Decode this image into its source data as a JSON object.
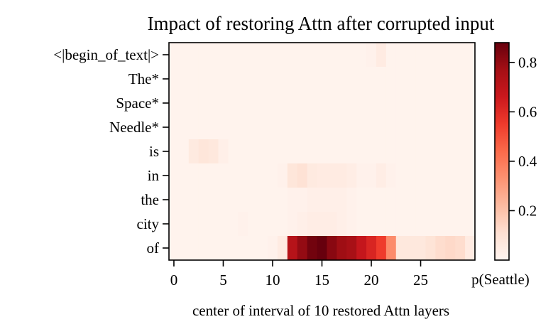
{
  "chart_data": {
    "type": "heatmap",
    "title": "Impact of restoring Attn after corrupted input",
    "xlabel": "center of interval of 10 restored Attn layers",
    "ylabel": "",
    "colorbar_label": "p(Seattle)",
    "x_ticks": [
      0,
      5,
      10,
      15,
      20,
      25
    ],
    "x": [
      0,
      1,
      2,
      3,
      4,
      5,
      6,
      7,
      8,
      9,
      10,
      11,
      12,
      13,
      14,
      15,
      16,
      17,
      18,
      19,
      20,
      21,
      22,
      23,
      24,
      25,
      26,
      27,
      28,
      29,
      30
    ],
    "y_labels": [
      "<|begin_of_text|>",
      "The*",
      "Space*",
      "Needle*",
      "is",
      "in",
      "the",
      "city",
      "of"
    ],
    "colorbar_ticks": [
      0.2,
      0.4,
      0.6,
      0.8
    ],
    "vmin": 0.0,
    "vmax": 0.88,
    "colormap": "Reds",
    "values": [
      [
        0.01,
        0.01,
        0.01,
        0.01,
        0.01,
        0.01,
        0.01,
        0.01,
        0.01,
        0.01,
        0.01,
        0.01,
        0.01,
        0.01,
        0.01,
        0.01,
        0.01,
        0.01,
        0.01,
        0.01,
        0.02,
        0.05,
        0.01,
        0.01,
        0.01,
        0.01,
        0.01,
        0.01,
        0.01,
        0.01,
        0.01
      ],
      [
        0.01,
        0.01,
        0.01,
        0.01,
        0.01,
        0.01,
        0.01,
        0.01,
        0.01,
        0.01,
        0.01,
        0.01,
        0.01,
        0.01,
        0.01,
        0.01,
        0.01,
        0.01,
        0.01,
        0.01,
        0.01,
        0.01,
        0.01,
        0.01,
        0.01,
        0.01,
        0.01,
        0.01,
        0.01,
        0.01,
        0.01
      ],
      [
        0.01,
        0.01,
        0.01,
        0.01,
        0.01,
        0.01,
        0.01,
        0.01,
        0.01,
        0.01,
        0.01,
        0.01,
        0.01,
        0.01,
        0.01,
        0.01,
        0.01,
        0.01,
        0.01,
        0.01,
        0.01,
        0.01,
        0.01,
        0.01,
        0.01,
        0.01,
        0.01,
        0.01,
        0.01,
        0.01,
        0.01
      ],
      [
        0.01,
        0.01,
        0.01,
        0.01,
        0.01,
        0.01,
        0.01,
        0.01,
        0.01,
        0.01,
        0.01,
        0.01,
        0.01,
        0.01,
        0.01,
        0.01,
        0.01,
        0.01,
        0.01,
        0.01,
        0.01,
        0.01,
        0.01,
        0.01,
        0.01,
        0.01,
        0.01,
        0.01,
        0.01,
        0.01,
        0.01
      ],
      [
        0.01,
        0.01,
        0.06,
        0.08,
        0.07,
        0.03,
        0.01,
        0.01,
        0.01,
        0.01,
        0.01,
        0.01,
        0.01,
        0.01,
        0.01,
        0.01,
        0.01,
        0.01,
        0.01,
        0.01,
        0.01,
        0.01,
        0.01,
        0.01,
        0.01,
        0.01,
        0.01,
        0.01,
        0.01,
        0.01,
        0.01
      ],
      [
        0.01,
        0.01,
        0.01,
        0.01,
        0.01,
        0.01,
        0.01,
        0.01,
        0.01,
        0.01,
        0.01,
        0.02,
        0.08,
        0.1,
        0.06,
        0.05,
        0.05,
        0.05,
        0.04,
        0.02,
        0.02,
        0.04,
        0.02,
        0.01,
        0.01,
        0.01,
        0.01,
        0.01,
        0.01,
        0.01,
        0.01
      ],
      [
        0.01,
        0.01,
        0.01,
        0.01,
        0.01,
        0.01,
        0.01,
        0.01,
        0.01,
        0.01,
        0.01,
        0.01,
        0.02,
        0.02,
        0.03,
        0.03,
        0.03,
        0.03,
        0.02,
        0.01,
        0.01,
        0.01,
        0.01,
        0.01,
        0.01,
        0.01,
        0.01,
        0.01,
        0.01,
        0.01,
        0.01
      ],
      [
        0.01,
        0.01,
        0.01,
        0.01,
        0.01,
        0.01,
        0.01,
        0.02,
        0.01,
        0.01,
        0.01,
        0.01,
        0.02,
        0.03,
        0.04,
        0.04,
        0.04,
        0.03,
        0.02,
        0.01,
        0.01,
        0.01,
        0.01,
        0.01,
        0.01,
        0.01,
        0.01,
        0.01,
        0.01,
        0.01,
        0.01
      ],
      [
        0.01,
        0.01,
        0.01,
        0.01,
        0.01,
        0.01,
        0.01,
        0.01,
        0.01,
        0.01,
        0.02,
        0.05,
        0.72,
        0.8,
        0.86,
        0.88,
        0.82,
        0.78,
        0.76,
        0.68,
        0.62,
        0.55,
        0.35,
        0.07,
        0.07,
        0.07,
        0.09,
        0.12,
        0.13,
        0.12,
        0.05
      ]
    ]
  }
}
